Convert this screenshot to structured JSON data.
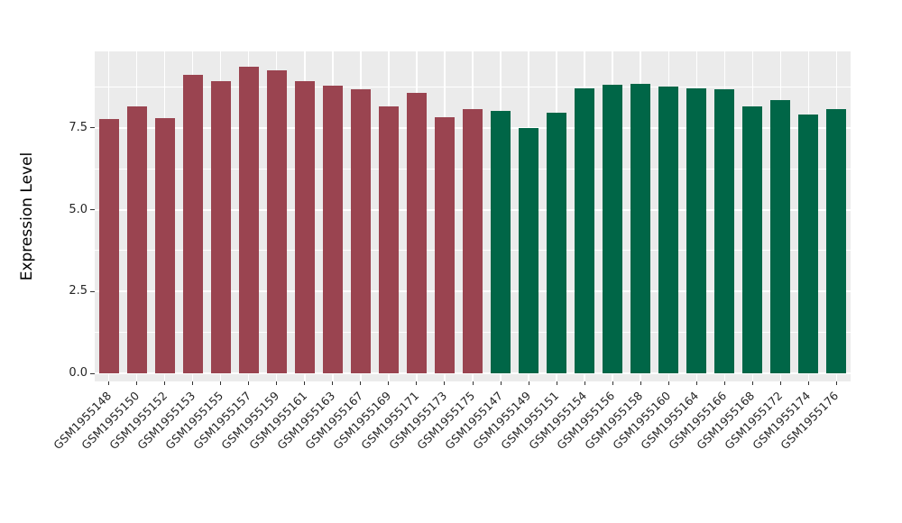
{
  "chart_data": {
    "type": "bar",
    "title": "",
    "xlabel": "",
    "ylabel": "Expression Level",
    "ylim": [
      -0.25,
      9.84
    ],
    "yticks": [
      0.0,
      2.5,
      5.0,
      7.5
    ],
    "ytick_labels": [
      "0.0",
      "2.5",
      "5.0",
      "7.5"
    ],
    "minor_yticks": [
      1.25,
      3.75,
      6.25,
      8.75
    ],
    "legend_position": "none",
    "grid": "white major+minor horizontal lines and vertical lines at bar centers on gray panel",
    "panel_background": "#EBEBEB",
    "group_colors": {
      "left": "#9A4450",
      "right": "#006647"
    },
    "categories": [
      "GSM1955148",
      "GSM1955150",
      "GSM1955152",
      "GSM1955153",
      "GSM1955155",
      "GSM1955157",
      "GSM1955159",
      "GSM1955161",
      "GSM1955163",
      "GSM1955167",
      "GSM1955169",
      "GSM1955171",
      "GSM1955173",
      "GSM1955175",
      "GSM1955147",
      "GSM1955149",
      "GSM1955151",
      "GSM1955154",
      "GSM1955156",
      "GSM1955158",
      "GSM1955160",
      "GSM1955164",
      "GSM1955166",
      "GSM1955168",
      "GSM1955172",
      "GSM1955174",
      "GSM1955176"
    ],
    "values": [
      7.77,
      8.15,
      7.8,
      9.13,
      8.94,
      9.38,
      9.27,
      8.92,
      8.8,
      8.68,
      8.17,
      8.57,
      7.83,
      8.08,
      8.02,
      7.51,
      7.98,
      8.72,
      8.81,
      8.86,
      8.77,
      8.71,
      8.69,
      8.17,
      8.35,
      7.9,
      8.08
    ],
    "bars": [
      {
        "label": "GSM1955148",
        "value": 7.77,
        "group": "left"
      },
      {
        "label": "GSM1955150",
        "value": 8.15,
        "group": "left"
      },
      {
        "label": "GSM1955152",
        "value": 7.8,
        "group": "left"
      },
      {
        "label": "GSM1955153",
        "value": 9.13,
        "group": "left"
      },
      {
        "label": "GSM1955155",
        "value": 8.94,
        "group": "left"
      },
      {
        "label": "GSM1955157",
        "value": 9.38,
        "group": "left"
      },
      {
        "label": "GSM1955159",
        "value": 9.27,
        "group": "left"
      },
      {
        "label": "GSM1955161",
        "value": 8.92,
        "group": "left"
      },
      {
        "label": "GSM1955163",
        "value": 8.8,
        "group": "left"
      },
      {
        "label": "GSM1955167",
        "value": 8.68,
        "group": "left"
      },
      {
        "label": "GSM1955169",
        "value": 8.17,
        "group": "left"
      },
      {
        "label": "GSM1955171",
        "value": 8.57,
        "group": "left"
      },
      {
        "label": "GSM1955173",
        "value": 7.83,
        "group": "left"
      },
      {
        "label": "GSM1955175",
        "value": 8.08,
        "group": "left"
      },
      {
        "label": "GSM1955147",
        "value": 8.02,
        "group": "right"
      },
      {
        "label": "GSM1955149",
        "value": 7.51,
        "group": "right"
      },
      {
        "label": "GSM1955151",
        "value": 7.98,
        "group": "right"
      },
      {
        "label": "GSM1955154",
        "value": 8.72,
        "group": "right"
      },
      {
        "label": "GSM1955156",
        "value": 8.81,
        "group": "right"
      },
      {
        "label": "GSM1955158",
        "value": 8.86,
        "group": "right"
      },
      {
        "label": "GSM1955160",
        "value": 8.77,
        "group": "right"
      },
      {
        "label": "GSM1955164",
        "value": 8.71,
        "group": "right"
      },
      {
        "label": "GSM1955166",
        "value": 8.69,
        "group": "right"
      },
      {
        "label": "GSM1955168",
        "value": 8.17,
        "group": "right"
      },
      {
        "label": "GSM1955172",
        "value": 8.35,
        "group": "right"
      },
      {
        "label": "GSM1955174",
        "value": 7.9,
        "group": "right"
      },
      {
        "label": "GSM1955176",
        "value": 8.08,
        "group": "right"
      }
    ]
  }
}
